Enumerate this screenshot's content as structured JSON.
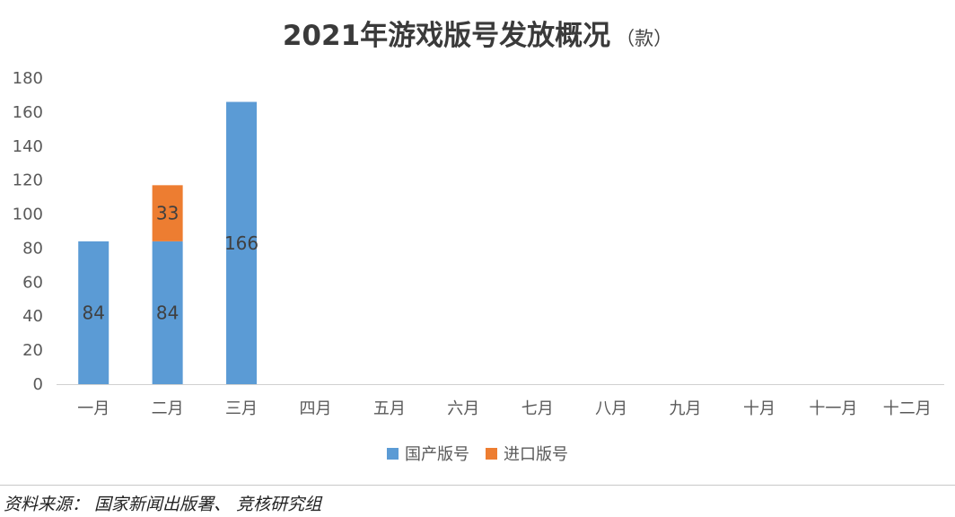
{
  "title": "2021年游戏版号发放概况",
  "title_unit": "（款）",
  "source": "资料来源： 国家新闻出版署、 竞核研究组",
  "chart_data": {
    "type": "bar",
    "stacked": true,
    "title": "2021年游戏版号发放概况（款）",
    "categories": [
      "一月",
      "二月",
      "三月",
      "四月",
      "五月",
      "六月",
      "七月",
      "八月",
      "九月",
      "十月",
      "十一月",
      "十二月"
    ],
    "series": [
      {
        "name": "国产版号",
        "color": "#5b9bd5",
        "values": [
          84,
          84,
          166,
          null,
          null,
          null,
          null,
          null,
          null,
          null,
          null,
          null
        ]
      },
      {
        "name": "进口版号",
        "color": "#ed7d31",
        "values": [
          null,
          33,
          null,
          null,
          null,
          null,
          null,
          null,
          null,
          null,
          null,
          null
        ]
      }
    ],
    "ylim": [
      0,
      180
    ],
    "yticks": [
      0,
      20,
      40,
      60,
      80,
      100,
      120,
      140,
      160,
      180
    ],
    "grid": false,
    "legend": "bottom"
  }
}
